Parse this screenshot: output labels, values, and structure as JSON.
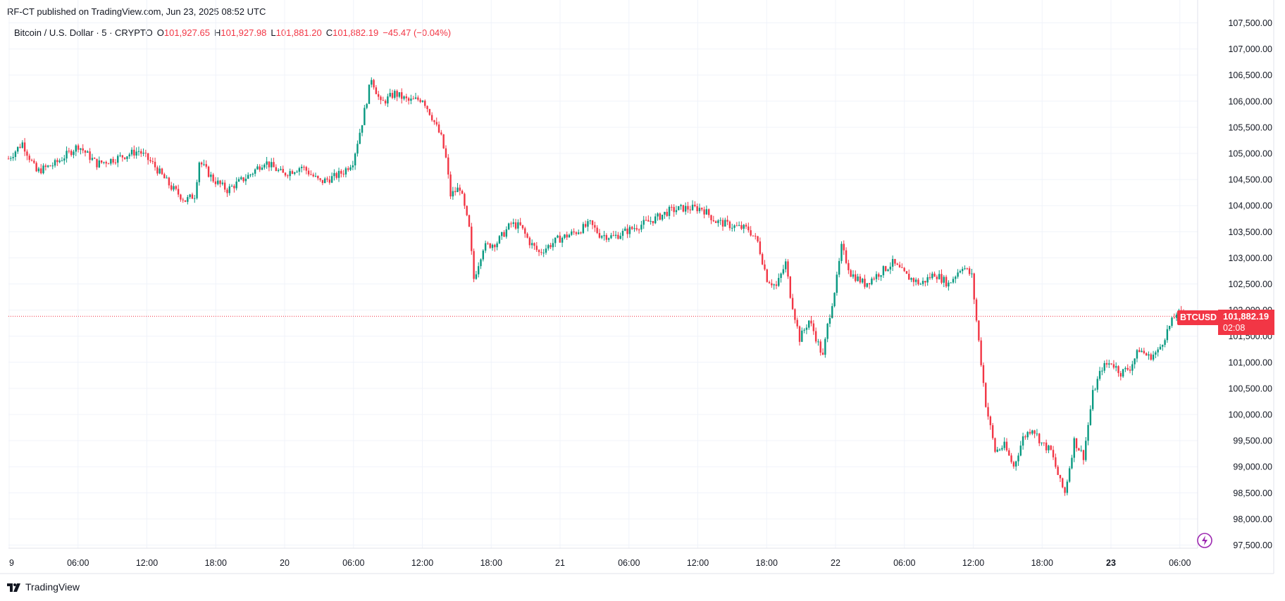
{
  "header": {
    "published": "RF-CT published on TradingView.com, Jun 23, 2025 08:52 UTC"
  },
  "legend": {
    "symbol": "Bitcoin / U.S. Dollar · 5 · CRYPTO",
    "o_label": "O",
    "o_value": "101,927.65",
    "h_label": "H",
    "h_value": "101,927.98",
    "l_label": "L",
    "l_value": "101,881.20",
    "c_label": "C",
    "c_value": "101,882.19",
    "change": "−45.47 (−0.04%)"
  },
  "price_tag": {
    "symbol": "BTCUSD",
    "price": "101,882.19",
    "countdown": "02:08"
  },
  "footer": {
    "brand": "TradingView"
  },
  "colors": {
    "up": "#089981",
    "down": "#f23645",
    "grid": "#f0f3fa",
    "price_line": "#f23645"
  },
  "chart_data": {
    "type": "candlestick",
    "interval": "5",
    "symbol": "BTCUSD",
    "last_price": 101882.19,
    "y_ticks": [
      "107,500.00",
      "107,000.00",
      "106,500.00",
      "106,000.00",
      "105,500.00",
      "105,000.00",
      "104,500.00",
      "104,000.00",
      "103,500.00",
      "103,000.00",
      "102,500.00",
      "102,000.00",
      "101,500.00",
      "101,000.00",
      "100,500.00",
      "100,000.00",
      "99,500.00",
      "99,000.00",
      "98,500.00",
      "98,000.00",
      "97,500.00"
    ],
    "x_ticks": [
      {
        "label": "9",
        "bold": false
      },
      {
        "label": "06:00",
        "bold": false
      },
      {
        "label": "12:00",
        "bold": false
      },
      {
        "label": "18:00",
        "bold": false
      },
      {
        "label": "20",
        "bold": false
      },
      {
        "label": "06:00",
        "bold": false
      },
      {
        "label": "12:00",
        "bold": false
      },
      {
        "label": "18:00",
        "bold": false
      },
      {
        "label": "21",
        "bold": false
      },
      {
        "label": "06:00",
        "bold": false
      },
      {
        "label": "12:00",
        "bold": false
      },
      {
        "label": "18:00",
        "bold": false
      },
      {
        "label": "22",
        "bold": false
      },
      {
        "label": "06:00",
        "bold": false
      },
      {
        "label": "12:00",
        "bold": false
      },
      {
        "label": "18:00",
        "bold": false
      },
      {
        "label": "23",
        "bold": true
      },
      {
        "label": "06:00",
        "bold": false
      }
    ],
    "ylim": [
      97500,
      107500
    ],
    "price_path": [
      [
        0,
        104900
      ],
      [
        6,
        105200
      ],
      [
        12,
        104650
      ],
      [
        20,
        104800
      ],
      [
        30,
        105150
      ],
      [
        38,
        104800
      ],
      [
        46,
        104900
      ],
      [
        56,
        105050
      ],
      [
        62,
        104800
      ],
      [
        70,
        104350
      ],
      [
        76,
        104100
      ],
      [
        80,
        104200
      ],
      [
        82,
        104850
      ],
      [
        88,
        104500
      ],
      [
        94,
        104300
      ],
      [
        104,
        104600
      ],
      [
        110,
        104850
      ],
      [
        118,
        104600
      ],
      [
        126,
        104750
      ],
      [
        134,
        104450
      ],
      [
        140,
        104550
      ],
      [
        144,
        104650
      ],
      [
        148,
        104850
      ],
      [
        152,
        105600
      ],
      [
        156,
        106450
      ],
      [
        160,
        105950
      ],
      [
        166,
        106150
      ],
      [
        172,
        106000
      ],
      [
        178,
        106050
      ],
      [
        182,
        105700
      ],
      [
        186,
        105300
      ],
      [
        188,
        104900
      ],
      [
        190,
        104200
      ],
      [
        194,
        104350
      ],
      [
        198,
        103550
      ],
      [
        200,
        102600
      ],
      [
        204,
        103200
      ],
      [
        210,
        103300
      ],
      [
        216,
        103650
      ],
      [
        220,
        103600
      ],
      [
        224,
        103300
      ],
      [
        228,
        103100
      ],
      [
        236,
        103350
      ],
      [
        244,
        103500
      ],
      [
        250,
        103650
      ],
      [
        254,
        103450
      ],
      [
        260,
        103400
      ],
      [
        270,
        103600
      ],
      [
        278,
        103750
      ],
      [
        284,
        103900
      ],
      [
        290,
        103950
      ],
      [
        298,
        103950
      ],
      [
        304,
        103700
      ],
      [
        312,
        103600
      ],
      [
        318,
        103550
      ],
      [
        322,
        103300
      ],
      [
        326,
        102600
      ],
      [
        330,
        102450
      ],
      [
        334,
        102900
      ],
      [
        336,
        102300
      ],
      [
        340,
        101450
      ],
      [
        344,
        101800
      ],
      [
        346,
        101600
      ],
      [
        350,
        101100
      ],
      [
        352,
        101700
      ],
      [
        356,
        102600
      ],
      [
        358,
        103200
      ],
      [
        362,
        102700
      ],
      [
        368,
        102500
      ],
      [
        374,
        102700
      ],
      [
        380,
        102900
      ],
      [
        386,
        102650
      ],
      [
        392,
        102500
      ],
      [
        398,
        102700
      ],
      [
        404,
        102500
      ],
      [
        410,
        102850
      ],
      [
        414,
        102650
      ],
      [
        416,
        101800
      ],
      [
        418,
        101000
      ],
      [
        420,
        100200
      ],
      [
        424,
        99300
      ],
      [
        428,
        99400
      ],
      [
        432,
        99000
      ],
      [
        436,
        99550
      ],
      [
        440,
        99750
      ],
      [
        444,
        99450
      ],
      [
        448,
        99300
      ],
      [
        452,
        98700
      ],
      [
        454,
        98500
      ],
      [
        458,
        99500
      ],
      [
        462,
        99200
      ],
      [
        464,
        99800
      ],
      [
        466,
        100400
      ],
      [
        470,
        100900
      ],
      [
        474,
        101000
      ],
      [
        478,
        100800
      ],
      [
        482,
        100900
      ],
      [
        486,
        101250
      ],
      [
        490,
        101100
      ],
      [
        494,
        101200
      ],
      [
        498,
        101600
      ],
      [
        502,
        101950
      ],
      [
        505,
        101880
      ]
    ]
  }
}
